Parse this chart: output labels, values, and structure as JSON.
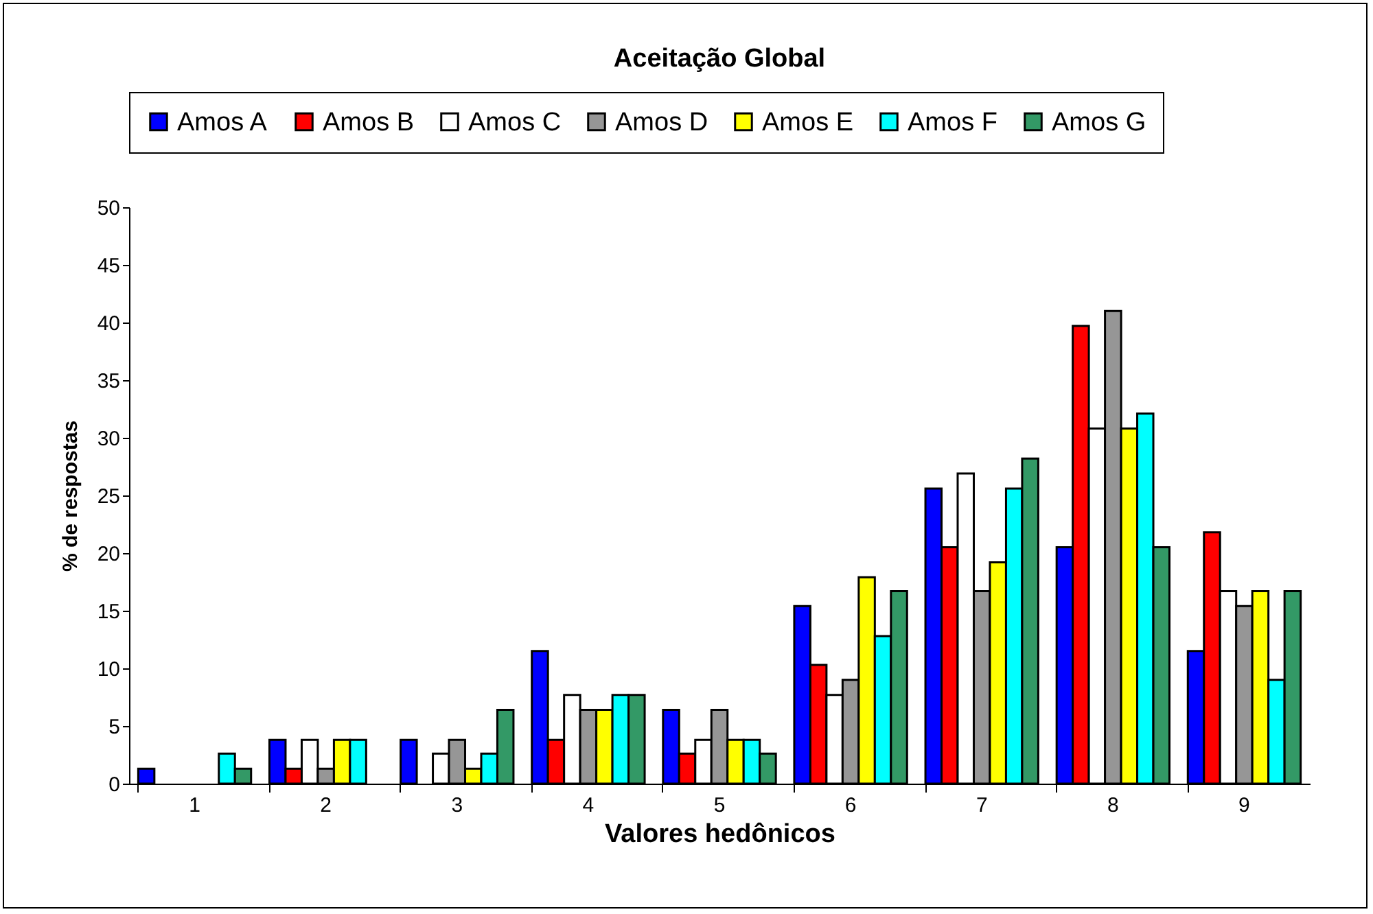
{
  "chart_data": {
    "type": "bar",
    "title": "Aceitação Global",
    "xlabel": "Valores hedônicos",
    "ylabel": "% de respostas",
    "categories": [
      "1",
      "2",
      "3",
      "4",
      "5",
      "6",
      "7",
      "8",
      "9"
    ],
    "series": [
      {
        "name": "Amos A",
        "color": "#0000ff",
        "values": [
          1.3,
          3.8,
          3.8,
          11.5,
          6.4,
          15.4,
          25.6,
          20.5,
          11.5
        ]
      },
      {
        "name": "Amos B",
        "color": "#ff0000",
        "values": [
          0,
          1.3,
          0,
          3.8,
          2.6,
          10.3,
          20.5,
          39.7,
          21.8
        ]
      },
      {
        "name": "Amos C",
        "color": "#ffffff",
        "values": [
          0,
          3.8,
          2.6,
          7.7,
          3.8,
          7.7,
          26.9,
          30.8,
          16.7
        ]
      },
      {
        "name": "Amos D",
        "color": "#969696",
        "values": [
          0,
          1.3,
          3.8,
          6.4,
          6.4,
          9.0,
          16.7,
          41.0,
          15.4
        ]
      },
      {
        "name": "Amos E",
        "color": "#ffff00",
        "values": [
          0,
          3.8,
          1.3,
          6.4,
          3.8,
          17.9,
          19.2,
          30.8,
          16.7
        ]
      },
      {
        "name": "Amos F",
        "color": "#00ffff",
        "values": [
          2.6,
          3.8,
          2.6,
          7.7,
          3.8,
          12.8,
          25.6,
          32.1,
          9.0
        ]
      },
      {
        "name": "Amos G",
        "color": "#339966",
        "values": [
          1.3,
          0,
          6.4,
          7.7,
          2.6,
          16.7,
          28.2,
          20.5,
          16.7
        ]
      }
    ],
    "ylim": [
      0,
      50
    ],
    "yticks": [
      0,
      5,
      10,
      15,
      20,
      25,
      30,
      35,
      40,
      45,
      50
    ],
    "grid": false,
    "legend": "top"
  }
}
